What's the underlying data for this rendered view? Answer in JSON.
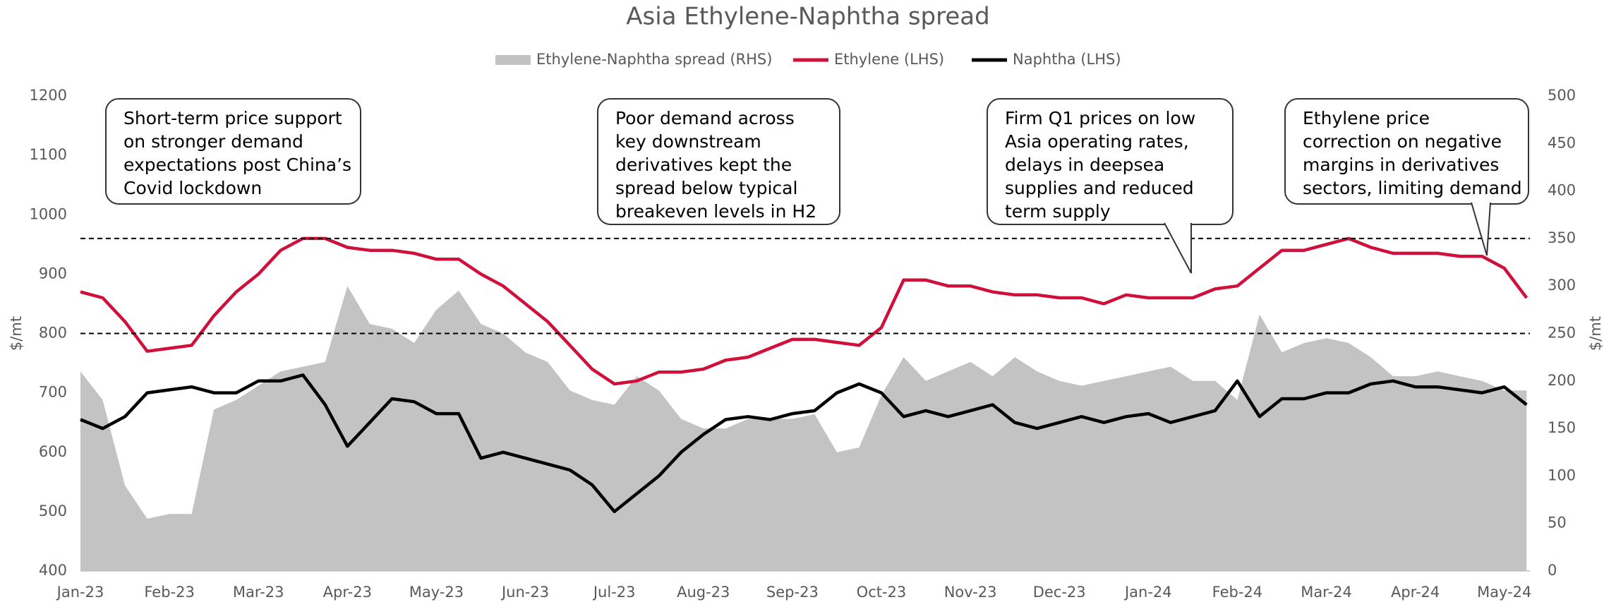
{
  "chart_data": {
    "type": "line",
    "title": "Asia Ethylene-Naphtha spread",
    "categories": [
      "Jan-23",
      null,
      null,
      null,
      "Feb-23",
      null,
      null,
      null,
      "Mar-23",
      null,
      null,
      null,
      "Apr-23",
      null,
      null,
      null,
      "May-23",
      null,
      null,
      null,
      "Jun-23",
      null,
      null,
      null,
      "Jul-23",
      null,
      null,
      null,
      "Aug-23",
      null,
      null,
      null,
      "Sep-23",
      null,
      null,
      null,
      "Oct-23",
      null,
      null,
      null,
      "Nov-23",
      null,
      null,
      null,
      "Dec-23",
      null,
      null,
      null,
      "Jan-24",
      null,
      null,
      null,
      "Feb-24",
      null,
      null,
      null,
      "Mar-24",
      null,
      null,
      null,
      "Apr-24",
      null,
      null,
      null,
      "May-24",
      null
    ],
    "series": [
      {
        "name": "Ethylene-Naphtha spread (RHS)",
        "type": "area",
        "axis": "y2",
        "color": "#c3c3c3",
        "values": [
          210,
          180,
          90,
          55,
          60,
          60,
          170,
          180,
          195,
          210,
          215,
          220,
          300,
          260,
          255,
          240,
          275,
          295,
          260,
          250,
          230,
          220,
          190,
          180,
          175,
          205,
          190,
          160,
          150,
          150,
          160,
          160,
          160,
          165,
          125,
          130,
          185,
          225,
          200,
          210,
          220,
          205,
          225,
          210,
          200,
          195,
          200,
          205,
          210,
          215,
          200,
          200,
          180,
          270,
          230,
          240,
          245,
          240,
          225,
          205,
          205,
          210,
          205,
          200,
          190,
          190
        ]
      },
      {
        "name": "Ethylene (LHS)",
        "type": "line",
        "color": "#d0103a",
        "values": [
          870,
          860,
          820,
          770,
          775,
          780,
          830,
          870,
          900,
          940,
          960,
          960,
          945,
          940,
          940,
          935,
          925,
          925,
          900,
          880,
          850,
          820,
          780,
          740,
          715,
          720,
          735,
          735,
          740,
          755,
          760,
          775,
          790,
          790,
          785,
          780,
          810,
          890,
          890,
          880,
          880,
          870,
          865,
          865,
          860,
          860,
          850,
          865,
          860,
          860,
          860,
          875,
          880,
          910,
          940,
          940,
          950,
          960,
          945,
          935,
          935,
          935,
          930,
          930,
          910,
          860
        ]
      },
      {
        "name": "Naphtha (LHS)",
        "type": "line",
        "color": "#000000",
        "values": [
          655,
          640,
          660,
          700,
          705,
          710,
          700,
          700,
          720,
          720,
          730,
          680,
          610,
          650,
          690,
          685,
          665,
          665,
          590,
          600,
          590,
          580,
          570,
          545,
          500,
          530,
          560,
          600,
          630,
          655,
          660,
          655,
          665,
          670,
          700,
          715,
          700,
          660,
          670,
          660,
          670,
          680,
          650,
          640,
          650,
          660,
          650,
          660,
          665,
          650,
          660,
          670,
          720,
          660,
          690,
          690,
          700,
          700,
          715,
          720,
          710,
          710,
          705,
          700,
          710,
          680
        ]
      }
    ],
    "ylabel": "$/mt",
    "y2label": "$/mt",
    "ylim": [
      400,
      1200
    ],
    "yticks": [
      400,
      500,
      600,
      700,
      800,
      900,
      1000,
      1100,
      1200
    ],
    "y2lim": [
      0,
      500
    ],
    "y2ticks": [
      0,
      50,
      100,
      150,
      200,
      250,
      300,
      350,
      400,
      450,
      500
    ],
    "hlines": [
      960,
      800
    ],
    "legend": "top",
    "annotations": [
      {
        "lines": [
          "Short-term  price support",
          "on stronger demand",
          "expectations post China’s",
          "Covid lockdown"
        ]
      },
      {
        "lines": [
          "Poor demand across",
          "key downstream",
          "derivatives kept the",
          "spread below typical",
          "breakeven levels in H2"
        ]
      },
      {
        "lines": [
          "Firm Q1 prices on low",
          "Asia operating rates,",
          "delays in deepsea",
          "supplies and reduced",
          "term supply"
        ]
      },
      {
        "lines": [
          "Ethylene price",
          "correction  on negative",
          "margins in derivatives",
          "sectors,  limiting demand"
        ]
      }
    ]
  }
}
